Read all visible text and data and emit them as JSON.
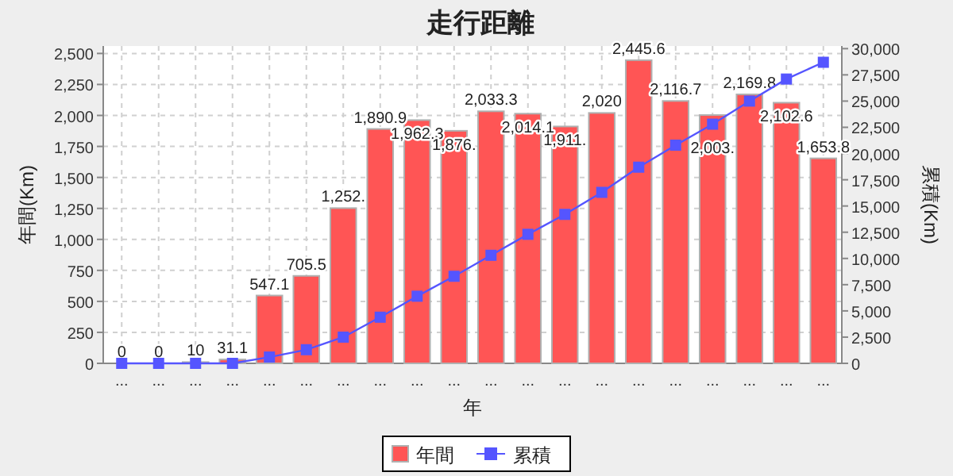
{
  "chart_data": {
    "type": "bar",
    "title": "走行距離",
    "xlabel": "年",
    "ylabel": "年間(Km)",
    "y2label": "累積(Km)",
    "categories": [
      "...",
      "...",
      "...",
      "...",
      "...",
      "...",
      "...",
      "...",
      "...",
      "...",
      "...",
      "...",
      "...",
      "...",
      "...",
      "...",
      "...",
      "...",
      "...",
      "..."
    ],
    "series": [
      {
        "name": "年間",
        "color": "#ff5555",
        "values": [
          0,
          0,
          10,
          31.1,
          547.1,
          705.5,
          1252,
          1890.9,
          1962.3,
          1876,
          2033.3,
          2014.1,
          1911,
          2020,
          2445.6,
          2116.7,
          2003,
          2169.8,
          2102.6,
          1653.8
        ],
        "value_labels": [
          "0",
          "0",
          "10",
          "31.1",
          "547.1",
          "705.5",
          "1,252.",
          "1,890.9",
          "1,962.3",
          "1,876.",
          "2,033.3",
          "2,014.1",
          "1,911.",
          "2,020",
          "2,445.6",
          "2,116.7",
          "2,003.",
          "2,169.8",
          "2,102.6",
          "1,653.8"
        ]
      },
      {
        "name": "累積",
        "type": "line",
        "axis": "y2",
        "color": "#5555ff",
        "marker": "square",
        "values": [
          0,
          0,
          0,
          0,
          600,
          1300,
          2500,
          4400,
          6400,
          8300,
          10300,
          12300,
          14200,
          16300,
          18700,
          20800,
          22800,
          25000,
          27100,
          28700
        ]
      }
    ],
    "ylim": [
      0,
      2560
    ],
    "yticks": [
      {
        "value": 0,
        "label": "0"
      },
      {
        "value": 250,
        "label": "250"
      },
      {
        "value": 500,
        "label": "500"
      },
      {
        "value": 750,
        "label": "750"
      },
      {
        "value": 1000,
        "label": "1,000"
      },
      {
        "value": 1250,
        "label": "1,250"
      },
      {
        "value": 1500,
        "label": "1,500"
      },
      {
        "value": 1750,
        "label": "1,750"
      },
      {
        "value": 2000,
        "label": "2,000"
      },
      {
        "value": 2250,
        "label": "2,250"
      },
      {
        "value": 2500,
        "label": "2,500"
      }
    ],
    "y2lim": [
      0,
      30250
    ],
    "y2ticks": [
      {
        "value": 0,
        "label": "0"
      },
      {
        "value": 2500,
        "label": "2,500"
      },
      {
        "value": 5000,
        "label": "5,000"
      },
      {
        "value": 7500,
        "label": "7,500"
      },
      {
        "value": 10000,
        "label": "10,000"
      },
      {
        "value": 12500,
        "label": "12,500"
      },
      {
        "value": 15000,
        "label": "15,000"
      },
      {
        "value": 17500,
        "label": "17,500"
      },
      {
        "value": 20000,
        "label": "20,000"
      },
      {
        "value": 22500,
        "label": "22,500"
      },
      {
        "value": 25000,
        "label": "25,000"
      },
      {
        "value": 27500,
        "label": "27,500"
      },
      {
        "value": 30000,
        "label": "30,000"
      }
    ],
    "grid": true,
    "legend": "bottom"
  }
}
